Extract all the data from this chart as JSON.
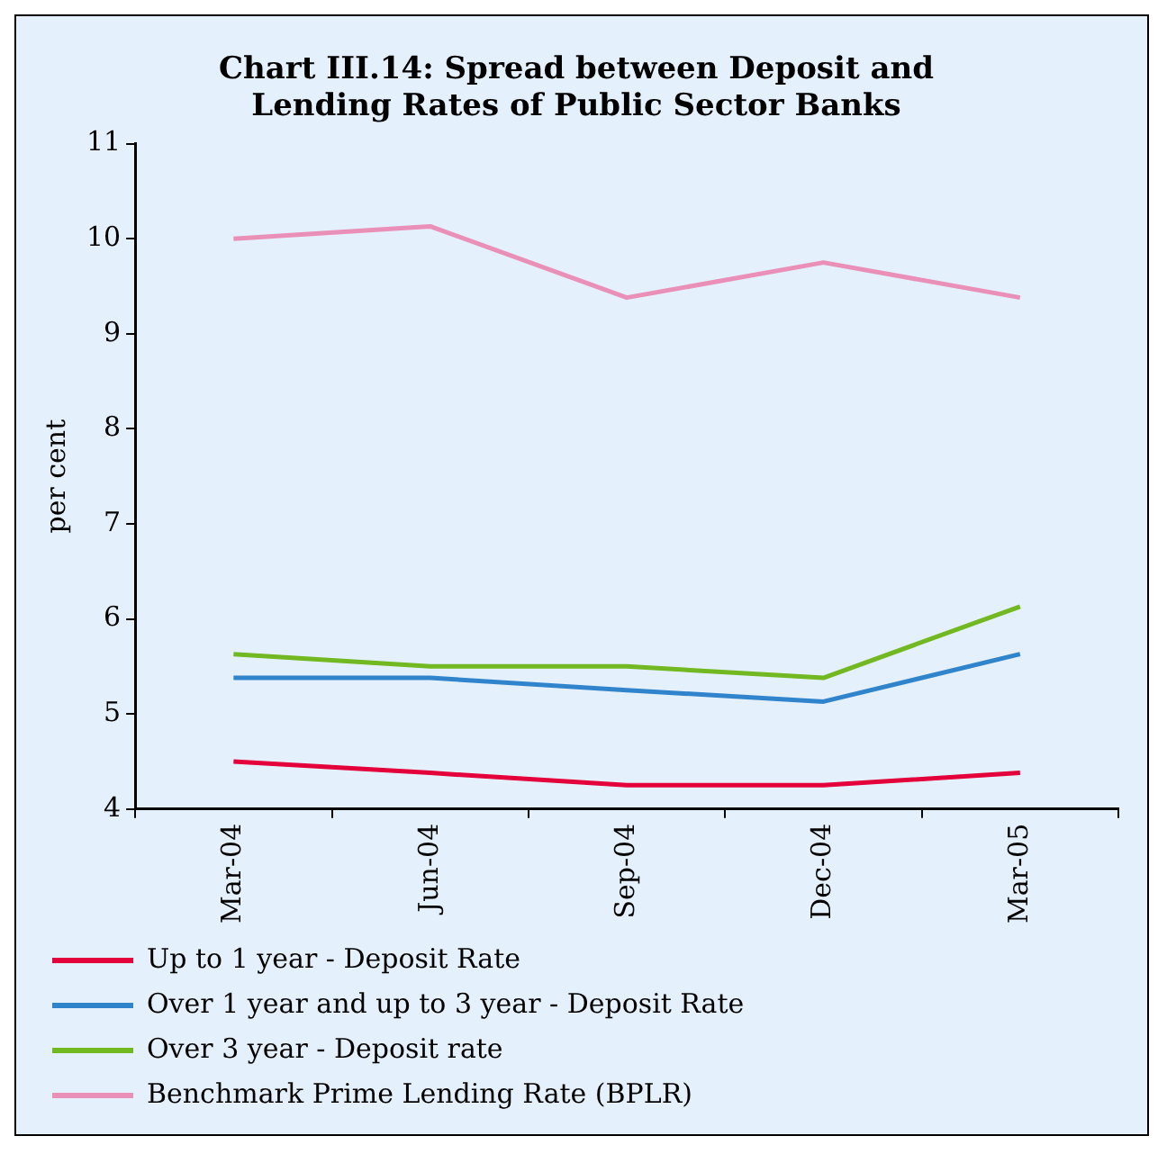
{
  "chart_data": {
    "type": "line",
    "title": "Chart III.14: Spread between Deposit and Lending Rates of Public Sector Banks",
    "ylabel": "per cent",
    "categories": [
      "Mar-04",
      "Jun-04",
      "Sep-04",
      "Dec-04",
      "Mar-05"
    ],
    "ylim": [
      4,
      11
    ],
    "yticks": [
      4,
      5,
      6,
      7,
      8,
      9,
      10,
      11
    ],
    "legend": "bottom",
    "marker": "none",
    "series": [
      {
        "name": "Up to 1 year - Deposit Rate",
        "color": "#e4003a",
        "values": [
          4.5,
          4.38,
          4.25,
          4.25,
          4.38
        ]
      },
      {
        "name": "Over 1 year and up to 3 year - Deposit Rate",
        "color": "#2f84cc",
        "values": [
          5.38,
          5.38,
          5.25,
          5.13,
          5.63
        ]
      },
      {
        "name": "Over 3 year - Deposit rate",
        "color": "#72b821",
        "values": [
          5.63,
          5.5,
          5.5,
          5.38,
          6.13
        ]
      },
      {
        "name": "Benchmark Prime Lending Rate (BPLR)",
        "color": "#e98fb8",
        "values": [
          10.0,
          10.13,
          9.38,
          9.75,
          9.38
        ]
      }
    ]
  }
}
